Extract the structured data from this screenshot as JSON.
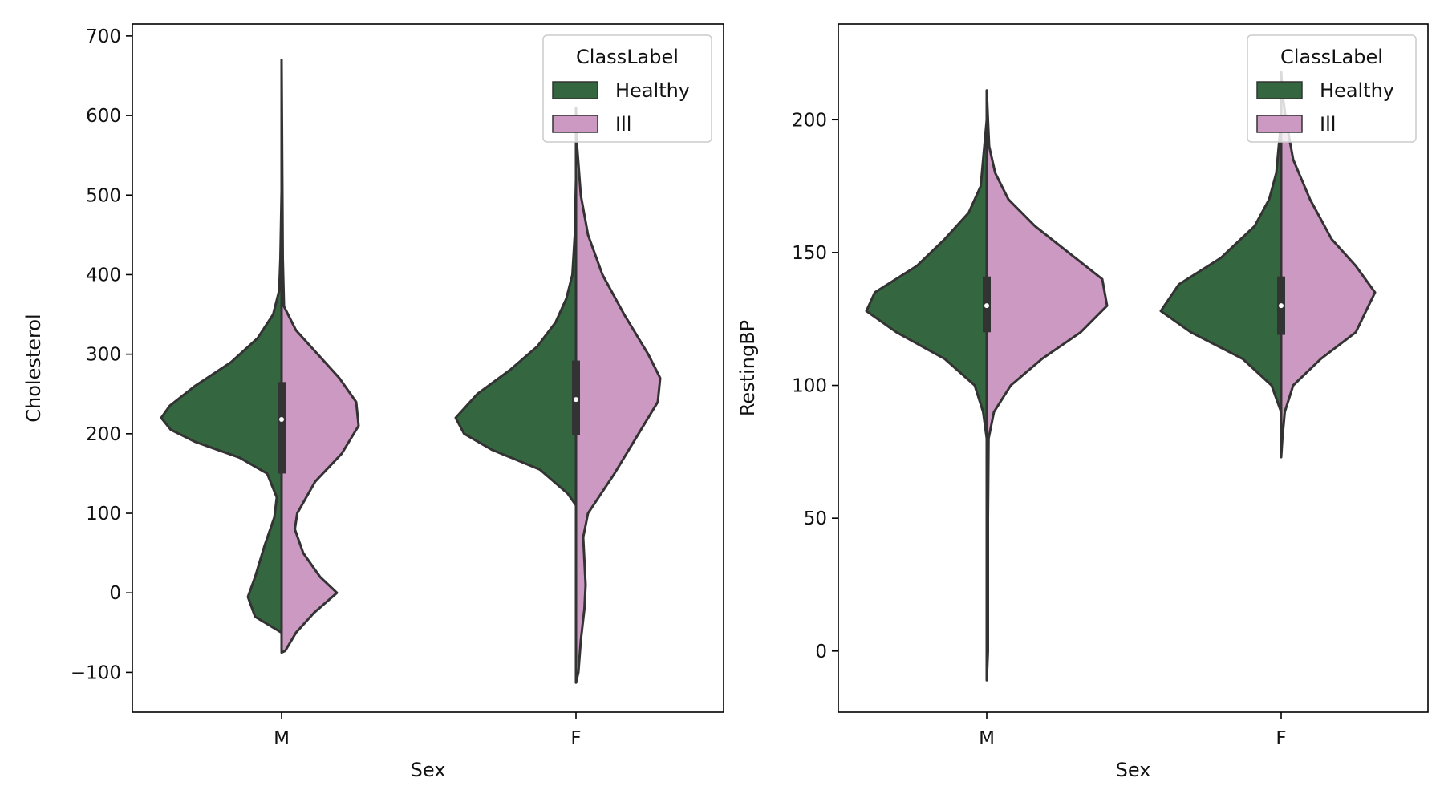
{
  "chart_data": [
    {
      "type": "violin",
      "split": true,
      "xlabel": "Sex",
      "ylabel": "Cholesterol",
      "categories": [
        "M",
        "F"
      ],
      "ylim": [
        -150,
        715
      ],
      "yticks": [
        -100,
        0,
        100,
        200,
        300,
        400,
        500,
        600,
        700
      ],
      "ytick_labels": [
        "−100",
        "0",
        "100",
        "200",
        "300",
        "400",
        "500",
        "600",
        "700"
      ],
      "legend": {
        "title": "ClassLabel",
        "entries": [
          {
            "label": "Healthy",
            "color": "#346740"
          },
          {
            "label": "Ill",
            "color": "#cc99c2"
          }
        ],
        "placement": "top-right"
      },
      "violins": [
        {
          "category": "M",
          "healthy": [
            [
              -50,
              0
            ],
            [
              -30,
              0.22
            ],
            [
              -5,
              0.28
            ],
            [
              20,
              0.22
            ],
            [
              60,
              0.14
            ],
            [
              95,
              0.06
            ],
            [
              120,
              0.04
            ],
            [
              150,
              0.12
            ],
            [
              170,
              0.35
            ],
            [
              190,
              0.72
            ],
            [
              205,
              0.92
            ],
            [
              220,
              1.0
            ],
            [
              235,
              0.93
            ],
            [
              260,
              0.72
            ],
            [
              290,
              0.42
            ],
            [
              320,
              0.2
            ],
            [
              350,
              0.07
            ],
            [
              380,
              0.02
            ],
            [
              420,
              0.01
            ],
            [
              505,
              0
            ]
          ],
          "ill": [
            [
              -75,
              0
            ],
            [
              -73,
              0.03
            ],
            [
              -50,
              0.12
            ],
            [
              -25,
              0.27
            ],
            [
              0,
              0.46
            ],
            [
              20,
              0.32
            ],
            [
              50,
              0.18
            ],
            [
              80,
              0.11
            ],
            [
              100,
              0.13
            ],
            [
              140,
              0.28
            ],
            [
              175,
              0.5
            ],
            [
              210,
              0.64
            ],
            [
              240,
              0.62
            ],
            [
              270,
              0.48
            ],
            [
              300,
              0.3
            ],
            [
              330,
              0.12
            ],
            [
              360,
              0.02
            ],
            [
              420,
              0.01
            ],
            [
              670,
              0
            ]
          ],
          "box": {
            "q1": 150,
            "median": 218,
            "q3": 265
          }
        },
        {
          "category": "F",
          "healthy": [
            [
              110,
              0
            ],
            [
              125,
              0.07
            ],
            [
              155,
              0.3
            ],
            [
              180,
              0.7
            ],
            [
              200,
              0.93
            ],
            [
              220,
              1.0
            ],
            [
              250,
              0.82
            ],
            [
              280,
              0.55
            ],
            [
              310,
              0.32
            ],
            [
              340,
              0.17
            ],
            [
              370,
              0.08
            ],
            [
              400,
              0.03
            ],
            [
              450,
              0.01
            ],
            [
              520,
              0
            ]
          ],
          "ill": [
            [
              -113,
              0
            ],
            [
              -100,
              0.02
            ],
            [
              -60,
              0.04
            ],
            [
              -20,
              0.07
            ],
            [
              10,
              0.08
            ],
            [
              40,
              0.07
            ],
            [
              70,
              0.06
            ],
            [
              100,
              0.1
            ],
            [
              150,
              0.32
            ],
            [
              200,
              0.52
            ],
            [
              240,
              0.68
            ],
            [
              270,
              0.7
            ],
            [
              300,
              0.6
            ],
            [
              350,
              0.4
            ],
            [
              400,
              0.22
            ],
            [
              450,
              0.1
            ],
            [
              500,
              0.04
            ],
            [
              560,
              0.01
            ],
            [
              610,
              0
            ]
          ],
          "box": {
            "q1": 198,
            "median": 243,
            "q3": 292
          }
        }
      ]
    },
    {
      "type": "violin",
      "split": true,
      "xlabel": "Sex",
      "ylabel": "RestingBP",
      "categories": [
        "M",
        "F"
      ],
      "ylim": [
        -23,
        236
      ],
      "yticks": [
        0,
        50,
        100,
        150,
        200
      ],
      "ytick_labels": [
        "0",
        "50",
        "100",
        "150",
        "200"
      ],
      "legend": {
        "title": "ClassLabel",
        "entries": [
          {
            "label": "Healthy",
            "color": "#346740"
          },
          {
            "label": "Ill",
            "color": "#cc99c2"
          }
        ],
        "placement": "top-right"
      },
      "violins": [
        {
          "category": "M",
          "healthy": [
            [
              80,
              0
            ],
            [
              90,
              0.03
            ],
            [
              100,
              0.1
            ],
            [
              110,
              0.35
            ],
            [
              120,
              0.75
            ],
            [
              128,
              1.0
            ],
            [
              135,
              0.93
            ],
            [
              145,
              0.58
            ],
            [
              155,
              0.35
            ],
            [
              165,
              0.15
            ],
            [
              175,
              0.05
            ],
            [
              185,
              0.03
            ],
            [
              195,
              0.01
            ],
            [
              200,
              0
            ]
          ],
          "ill": [
            [
              -11,
              0
            ],
            [
              0,
              0.01
            ],
            [
              50,
              0.01
            ],
            [
              80,
              0.015
            ],
            [
              90,
              0.06
            ],
            [
              100,
              0.2
            ],
            [
              110,
              0.46
            ],
            [
              120,
              0.78
            ],
            [
              130,
              1.0
            ],
            [
              140,
              0.96
            ],
            [
              150,
              0.68
            ],
            [
              160,
              0.4
            ],
            [
              170,
              0.18
            ],
            [
              180,
              0.07
            ],
            [
              190,
              0.02
            ],
            [
              200,
              0.01
            ],
            [
              211,
              0
            ]
          ],
          "box": {
            "q1": 120,
            "median": 130,
            "q3": 141
          }
        },
        {
          "category": "F",
          "healthy": [
            [
              90,
              0
            ],
            [
              100,
              0.08
            ],
            [
              110,
              0.32
            ],
            [
              120,
              0.75
            ],
            [
              128,
              1.0
            ],
            [
              138,
              0.85
            ],
            [
              148,
              0.5
            ],
            [
              160,
              0.22
            ],
            [
              170,
              0.1
            ],
            [
              180,
              0.04
            ],
            [
              190,
              0.02
            ],
            [
              200,
              0
            ]
          ],
          "ill": [
            [
              73,
              0
            ],
            [
              80,
              0.01
            ],
            [
              90,
              0.03
            ],
            [
              100,
              0.1
            ],
            [
              110,
              0.33
            ],
            [
              120,
              0.62
            ],
            [
              135,
              0.78
            ],
            [
              145,
              0.62
            ],
            [
              155,
              0.42
            ],
            [
              170,
              0.24
            ],
            [
              185,
              0.1
            ],
            [
              200,
              0.04
            ],
            [
              210,
              0.01
            ],
            [
              218,
              0
            ]
          ],
          "box": {
            "q1": 119,
            "median": 130,
            "q3": 141
          }
        }
      ]
    }
  ]
}
